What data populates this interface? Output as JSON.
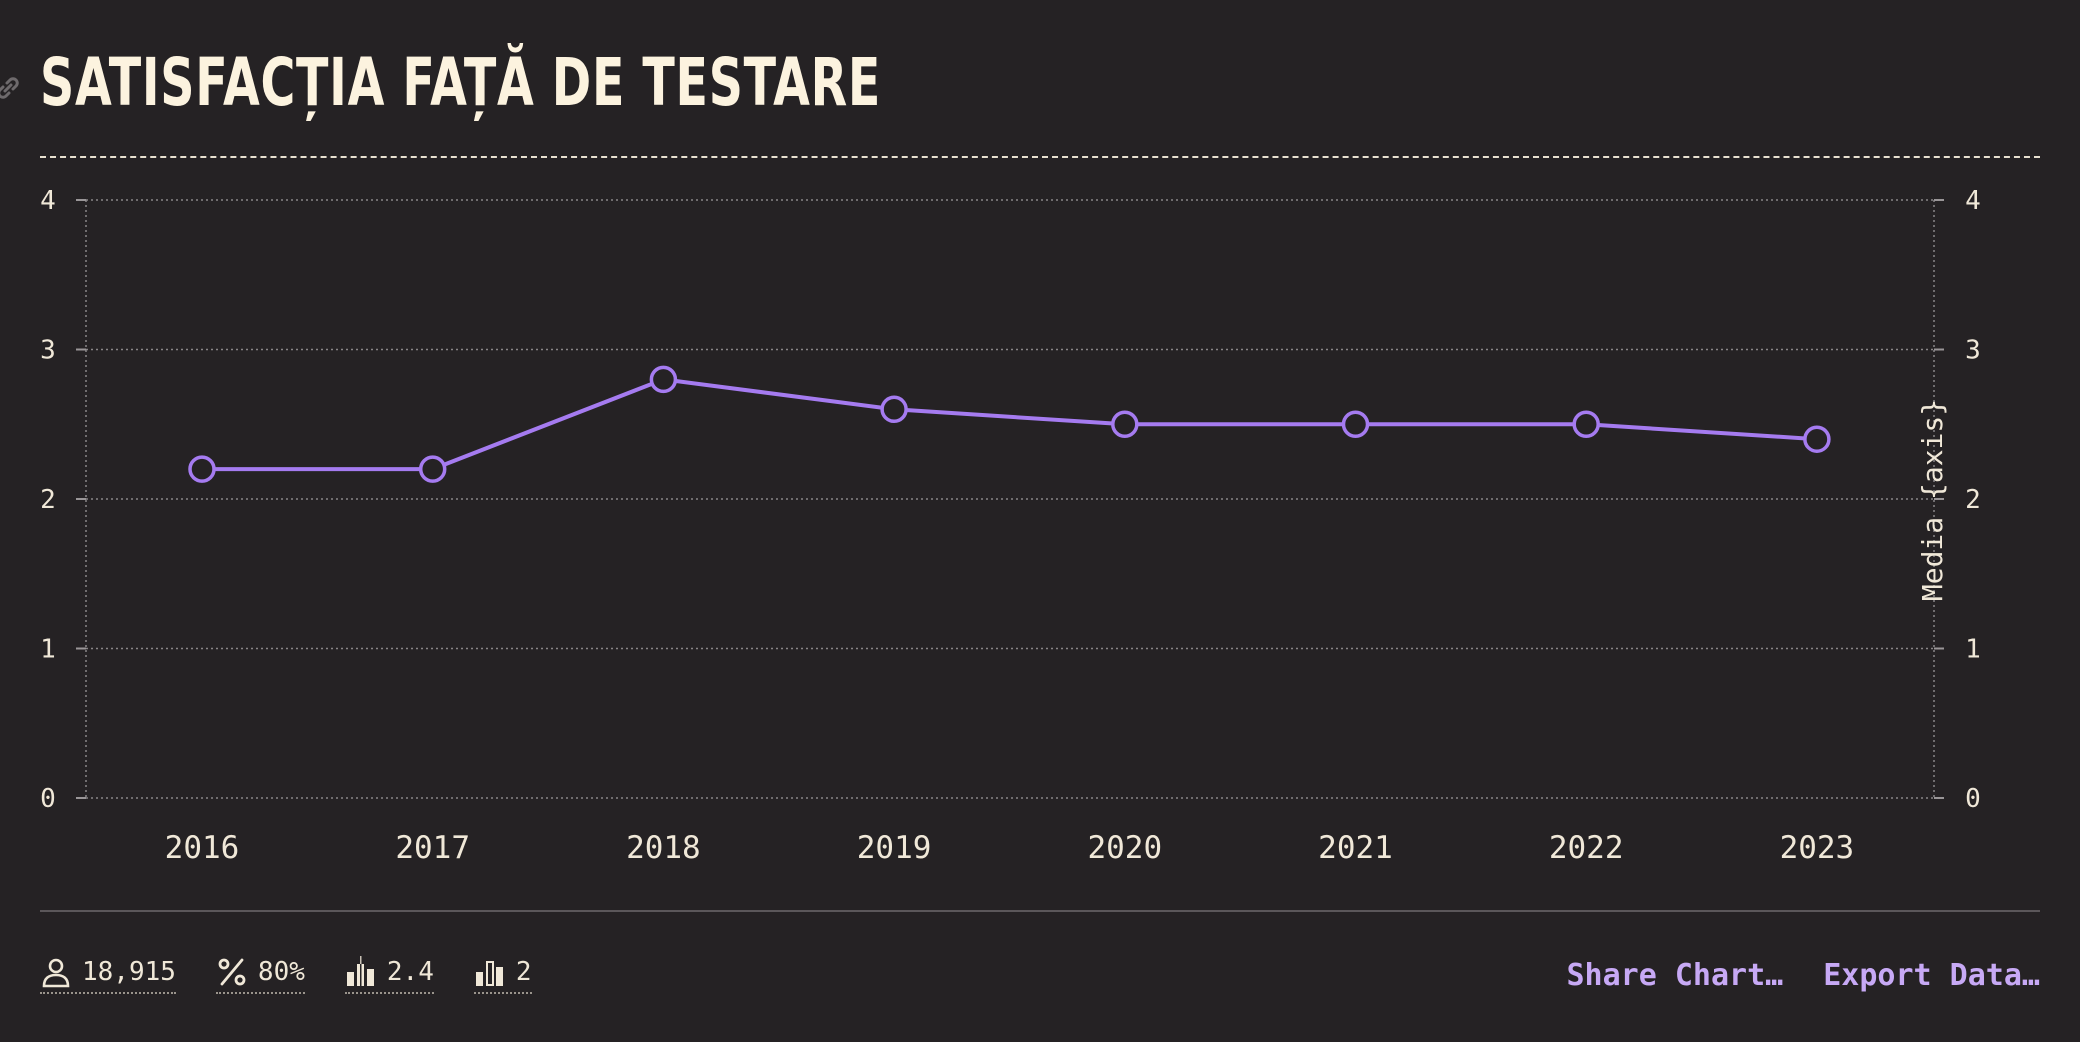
{
  "header": {
    "title": "SATISFACȚIA FAȚĂ DE TESTARE"
  },
  "chart_data": {
    "type": "line",
    "title": "SATISFACȚIA FAȚĂ DE TESTARE",
    "x": [
      "2016",
      "2017",
      "2018",
      "2019",
      "2020",
      "2021",
      "2022",
      "2023"
    ],
    "series": [
      {
        "values": [
          2.2,
          2.2,
          2.8,
          2.6,
          2.5,
          2.5,
          2.5,
          2.4
        ]
      }
    ],
    "ylabel_right": "Media {axis}",
    "ylim": [
      0,
      4
    ],
    "yticks": [
      "0",
      "1",
      "2",
      "3",
      "4"
    ],
    "grid": true,
    "line_color": "#a57bf0"
  },
  "footer": {
    "stats": [
      {
        "icon": "person-icon",
        "value": "18,915"
      },
      {
        "icon": "percent-icon",
        "value": "80%"
      },
      {
        "icon": "bar-mean-icon",
        "value": "2.4"
      },
      {
        "icon": "bar-median-icon",
        "value": "2"
      }
    ],
    "share_label": "Share Chart…",
    "export_label": "Export Data…"
  }
}
